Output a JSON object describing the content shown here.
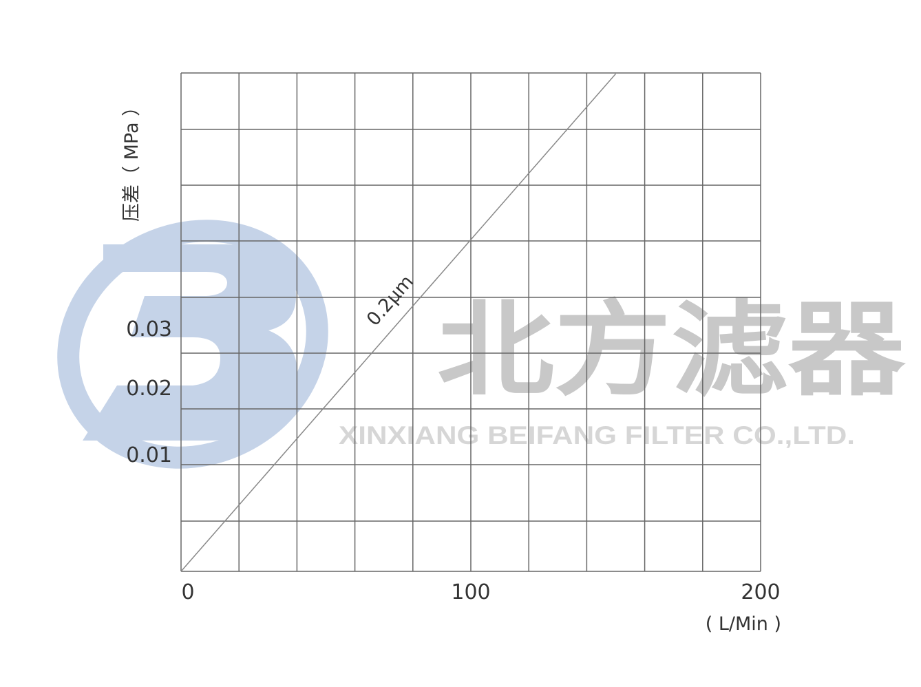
{
  "chart_data": {
    "type": "line",
    "title": "",
    "xlabel": "( L/Min )",
    "ylabel": "压差（ MPa ）",
    "xlim": [
      0,
      200
    ],
    "x_ticks": [
      {
        "value": 0,
        "label": "0"
      },
      {
        "value": 100,
        "label": "100"
      },
      {
        "value": 200,
        "label": "200"
      }
    ],
    "y_ticks": [
      {
        "value": 0.01,
        "label": "0.01"
      },
      {
        "value": 0.02,
        "label": "0.02"
      },
      {
        "value": 0.03,
        "label": "0.03"
      }
    ],
    "grid": true,
    "series": [
      {
        "name": "0.2μm",
        "color": "#888888",
        "points": [
          [
            0,
            0
          ],
          [
            150,
            0.073
          ]
        ]
      }
    ]
  },
  "watermark": {
    "cn": "北方滤器",
    "en": "XINXIANG BEIFANG FILTER CO.,LTD.",
    "logo_color": "#c5d3e8"
  }
}
